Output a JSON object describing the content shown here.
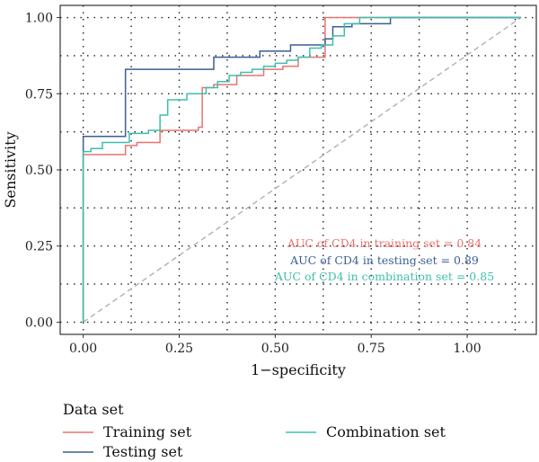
{
  "chart_data": {
    "type": "line",
    "xlabel": "1−specificity",
    "ylabel": "Sensitivity",
    "xlim": [
      -0.06,
      1.18
    ],
    "ylim": [
      -0.04,
      1.04
    ],
    "x_ticks": [
      "0.00",
      "0.25",
      "0.50",
      "0.75",
      "1.00"
    ],
    "y_ticks": [
      "0.00",
      "0.25",
      "0.50",
      "0.75",
      "1.00"
    ],
    "grid": true,
    "grid_style": "dotted",
    "reference_line": {
      "x": [
        0,
        1.14
      ],
      "y": [
        0,
        1
      ],
      "color": "#b0b0b0",
      "style": "dashed"
    },
    "legend": {
      "title": "Data set",
      "position": "bottom-left",
      "items": [
        {
          "label": "Training set",
          "color": "#e8736f"
        },
        {
          "label": "Testing set",
          "color": "#3b5f91"
        },
        {
          "label": "Combination set",
          "color": "#3dbfad"
        }
      ]
    },
    "annotations": [
      {
        "text": "AUC of CD4 in training set =  0.84",
        "color": "#e8736f"
      },
      {
        "text": "AUC of CD4 in testing set =  0.89",
        "color": "#3b5f91"
      },
      {
        "text": "AUC of CD4 in combination set =  0.85",
        "color": "#3dbfad"
      }
    ],
    "series": [
      {
        "name": "Training set",
        "color": "#e8736f",
        "x": [
          0,
          0,
          0.02,
          0.02,
          0.11,
          0.11,
          0.14,
          0.14,
          0.2,
          0.2,
          0.3,
          0.3,
          0.31,
          0.31,
          0.34,
          0.34,
          0.4,
          0.4,
          0.47,
          0.47,
          0.52,
          0.52,
          0.56,
          0.56,
          0.63,
          0.63,
          1.14
        ],
        "y": [
          0,
          0.55,
          0.55,
          0.55,
          0.55,
          0.58,
          0.58,
          0.59,
          0.59,
          0.63,
          0.63,
          0.64,
          0.64,
          0.77,
          0.77,
          0.78,
          0.78,
          0.81,
          0.81,
          0.83,
          0.83,
          0.84,
          0.84,
          0.87,
          0.87,
          1.0,
          1.0
        ]
      },
      {
        "name": "Testing set",
        "color": "#3b5f91",
        "x": [
          0,
          0,
          0.11,
          0.11,
          0.34,
          0.34,
          0.46,
          0.46,
          0.54,
          0.54,
          0.63,
          0.63,
          0.65,
          0.65,
          0.7,
          0.7,
          0.8,
          0.8,
          1.14
        ],
        "y": [
          0,
          0.61,
          0.61,
          0.83,
          0.83,
          0.87,
          0.87,
          0.89,
          0.89,
          0.91,
          0.91,
          0.93,
          0.93,
          0.97,
          0.97,
          0.98,
          0.98,
          1.0,
          1.0
        ]
      },
      {
        "name": "Combination set",
        "color": "#3dbfad",
        "x": [
          0,
          0,
          0.02,
          0.02,
          0.05,
          0.05,
          0.12,
          0.12,
          0.17,
          0.17,
          0.2,
          0.2,
          0.22,
          0.22,
          0.27,
          0.27,
          0.32,
          0.32,
          0.35,
          0.35,
          0.38,
          0.38,
          0.41,
          0.41,
          0.44,
          0.44,
          0.47,
          0.47,
          0.5,
          0.5,
          0.53,
          0.53,
          0.56,
          0.56,
          0.59,
          0.59,
          0.62,
          0.62,
          0.65,
          0.65,
          0.68,
          0.68,
          0.72,
          0.72,
          1.14
        ],
        "y": [
          0,
          0.56,
          0.56,
          0.57,
          0.57,
          0.59,
          0.59,
          0.62,
          0.62,
          0.63,
          0.63,
          0.68,
          0.68,
          0.73,
          0.73,
          0.75,
          0.75,
          0.77,
          0.77,
          0.79,
          0.79,
          0.81,
          0.81,
          0.82,
          0.82,
          0.83,
          0.83,
          0.84,
          0.84,
          0.85,
          0.85,
          0.86,
          0.86,
          0.87,
          0.87,
          0.9,
          0.9,
          0.91,
          0.91,
          0.94,
          0.94,
          0.98,
          0.98,
          1.0,
          1.0
        ]
      }
    ]
  }
}
